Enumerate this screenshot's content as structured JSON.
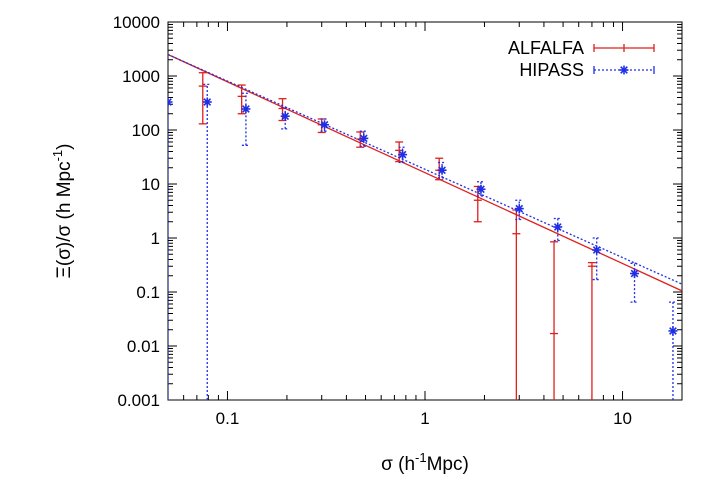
{
  "chart_data": {
    "type": "scatter",
    "title": "",
    "xlabel": {
      "prefix": "σ (h",
      "sup": "-1",
      "suffix": "Mpc)"
    },
    "ylabel": {
      "prefix": "Ξ(σ)/σ (h Mpc",
      "sup": "-1",
      "suffix": ")"
    },
    "xscale": "log",
    "yscale": "log",
    "xlim": [
      0.05,
      20
    ],
    "ylim": [
      0.001,
      10000
    ],
    "xticks": [
      {
        "v": 0.1,
        "label": "0.1"
      },
      {
        "v": 1,
        "label": "1"
      },
      {
        "v": 10,
        "label": "10"
      }
    ],
    "yticks": [
      {
        "v": 0.001,
        "label": "0.001"
      },
      {
        "v": 0.01,
        "label": "0.01"
      },
      {
        "v": 0.1,
        "label": "0.1"
      },
      {
        "v": 1,
        "label": "1"
      },
      {
        "v": 10,
        "label": "10"
      },
      {
        "v": 100,
        "label": "100"
      },
      {
        "v": 1000,
        "label": "1000"
      },
      {
        "v": 10000,
        "label": "10000"
      }
    ],
    "legend_position": "top-right",
    "series": [
      {
        "name": "ALFALFA",
        "color": "#e0201b",
        "style": "solid",
        "marker": "tick",
        "points": [
          {
            "x": 0.075,
            "y": 650,
            "lo": 130,
            "hi": 1150
          },
          {
            "x": 0.118,
            "y": 420,
            "lo": 200,
            "hi": 680
          },
          {
            "x": 0.19,
            "y": 250,
            "lo": 150,
            "hi": 380
          },
          {
            "x": 0.3,
            "y": 125,
            "lo": 90,
            "hi": 160
          },
          {
            "x": 0.47,
            "y": 68,
            "lo": 48,
            "hi": 92
          },
          {
            "x": 0.74,
            "y": 42,
            "lo": 26,
            "hi": 60
          },
          {
            "x": 1.18,
            "y": 18,
            "lo": 12,
            "hi": 30
          },
          {
            "x": 1.85,
            "y": 5,
            "lo": 2,
            "hi": 9
          },
          {
            "x": 2.9,
            "y": 1.2,
            "lo": 0.001,
            "hi": 3.3
          },
          {
            "x": 4.5,
            "y": 0.017,
            "lo": 0.001,
            "hi": 0.85
          },
          {
            "x": 7.0,
            "y": 0.3,
            "lo": 0.001,
            "hi": 0.35
          }
        ],
        "fit": {
          "x": [
            0.05,
            20
          ],
          "y": [
            2500,
            0.105
          ]
        }
      },
      {
        "name": "HIPASS",
        "color": "#1f2ee6",
        "style": "dotted",
        "marker": "star",
        "points": [
          {
            "x": 0.05,
            "y": 330,
            "lo": 0.001,
            "hi": 330
          },
          {
            "x": 0.079,
            "y": 330,
            "lo": 0.001,
            "hi": 700
          },
          {
            "x": 0.124,
            "y": 245,
            "lo": 52,
            "hi": 480
          },
          {
            "x": 0.196,
            "y": 180,
            "lo": 105,
            "hi": 260
          },
          {
            "x": 0.31,
            "y": 125,
            "lo": 95,
            "hi": 160
          },
          {
            "x": 0.49,
            "y": 70,
            "lo": 50,
            "hi": 95
          },
          {
            "x": 0.77,
            "y": 35,
            "lo": 25,
            "hi": 48
          },
          {
            "x": 1.22,
            "y": 18,
            "lo": 13,
            "hi": 25
          },
          {
            "x": 1.92,
            "y": 8,
            "lo": 6,
            "hi": 11
          },
          {
            "x": 3.0,
            "y": 3.5,
            "lo": 2.2,
            "hi": 5
          },
          {
            "x": 4.7,
            "y": 1.6,
            "lo": 0.9,
            "hi": 2.3
          },
          {
            "x": 7.4,
            "y": 0.6,
            "lo": 0.17,
            "hi": 1.0
          },
          {
            "x": 11.5,
            "y": 0.22,
            "lo": 0.065,
            "hi": 0.34
          },
          {
            "x": 18.0,
            "y": 0.019,
            "lo": 0.001,
            "hi": 0.065
          }
        ],
        "fit": {
          "x": [
            0.05,
            20
          ],
          "y": [
            2500,
            0.14
          ]
        }
      }
    ]
  }
}
